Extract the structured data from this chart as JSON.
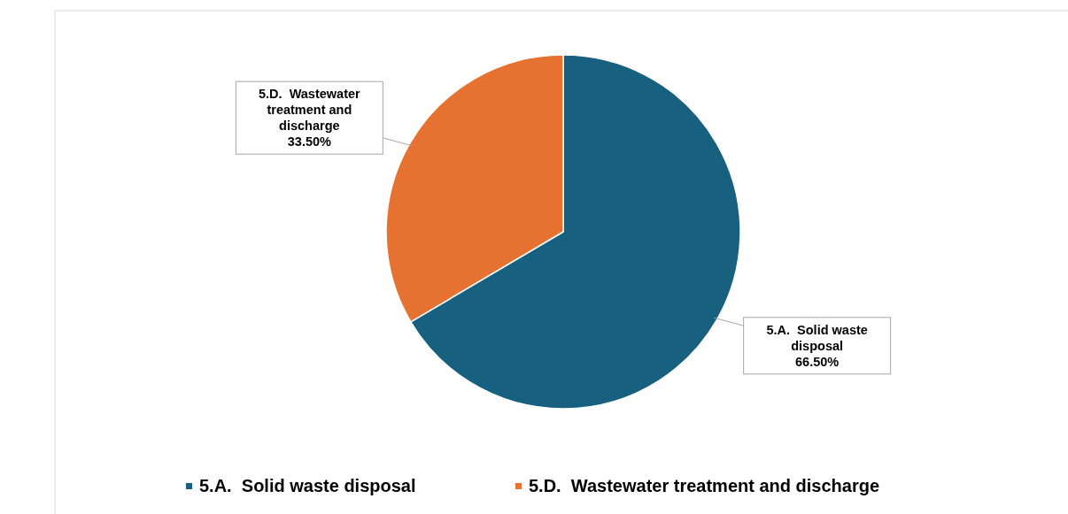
{
  "chart_data": {
    "type": "pie",
    "categories": [
      "5.A.  Solid waste disposal",
      "5.D.  Wastewater treatment and discharge"
    ],
    "values": [
      66.5,
      33.5
    ],
    "colors": [
      "#17607f",
      "#e67232"
    ],
    "value_labels": [
      "66.50%",
      "33.50%"
    ],
    "legend": "bottom"
  }
}
